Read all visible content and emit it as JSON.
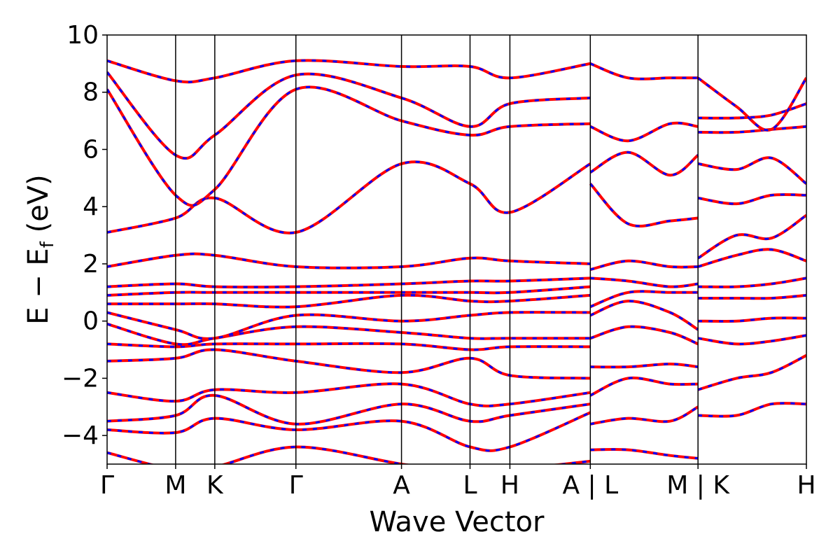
{
  "chart_data": {
    "type": "line",
    "xlabel": "Wave Vector",
    "ylabel_main": "E − E",
    "ylabel_sub": "f",
    "ylabel_unit": " (eV)",
    "ylim": [
      -5,
      10
    ],
    "yticks": [
      -4,
      -2,
      0,
      2,
      4,
      6,
      8,
      10
    ],
    "ytick_labels": [
      "−4",
      "−2",
      "0",
      "2",
      "4",
      "6",
      "8",
      "10"
    ],
    "xlim": [
      0,
      10
    ],
    "kpoints": [
      {
        "x": 0.0,
        "label": "Γ"
      },
      {
        "x": 0.98,
        "label": "M"
      },
      {
        "x": 1.54,
        "label": "K"
      },
      {
        "x": 2.7,
        "label": "Γ"
      },
      {
        "x": 4.21,
        "label": "A"
      },
      {
        "x": 5.19,
        "label": "L"
      },
      {
        "x": 5.76,
        "label": "H"
      },
      {
        "x": 6.91,
        "label": "A | L"
      },
      {
        "x": 8.45,
        "label": "M | K"
      },
      {
        "x": 10.0,
        "label": "H"
      }
    ],
    "segment_breaks": [
      6.91,
      8.45
    ],
    "series_styles": [
      {
        "style": "solid",
        "color": "#ff0000"
      },
      {
        "style": "dashed",
        "color": "#0000ff"
      }
    ],
    "bands": [
      {
        "x": [
          0,
          0.98,
          1.54,
          2.7,
          4.21,
          5.19,
          5.76,
          6.91
        ],
        "y": [
          -4.6,
          -5.2,
          -5.1,
          -4.4,
          -5.0,
          -5.3,
          -5.2,
          -4.9
        ]
      },
      {
        "x": [
          0,
          0.98,
          1.54,
          2.7,
          4.21,
          5.19,
          5.76,
          6.91
        ],
        "y": [
          -3.8,
          -3.9,
          -3.4,
          -3.8,
          -3.5,
          -4.4,
          -4.4,
          -3.2
        ]
      },
      {
        "x": [
          0,
          0.98,
          1.54,
          2.7,
          4.21,
          5.19,
          5.76,
          6.91
        ],
        "y": [
          -3.5,
          -3.3,
          -2.6,
          -3.6,
          -2.9,
          -3.5,
          -3.3,
          -2.9
        ]
      },
      {
        "x": [
          0,
          0.98,
          1.54,
          2.7,
          4.21,
          5.19,
          5.76,
          6.91
        ],
        "y": [
          -2.5,
          -2.8,
          -2.4,
          -2.5,
          -2.2,
          -2.9,
          -2.9,
          -2.5
        ]
      },
      {
        "x": [
          0,
          0.98,
          1.54,
          2.7,
          4.21,
          5.19,
          5.76,
          6.91
        ],
        "y": [
          -1.4,
          -1.3,
          -1.0,
          -1.4,
          -1.8,
          -1.3,
          -1.9,
          -2.0
        ]
      },
      {
        "x": [
          0,
          0.98,
          1.54,
          2.7,
          4.21,
          5.19,
          5.76,
          6.91
        ],
        "y": [
          -0.8,
          -0.9,
          -0.8,
          -0.8,
          -0.8,
          -1.0,
          -0.9,
          -0.9
        ]
      },
      {
        "x": [
          0,
          0.98,
          1.54,
          2.7,
          4.21,
          5.19,
          5.76,
          6.91
        ],
        "y": [
          -0.1,
          -0.8,
          -0.6,
          -0.2,
          -0.4,
          -0.6,
          -0.6,
          -0.6
        ]
      },
      {
        "x": [
          0,
          0.98,
          1.54,
          2.7,
          4.21,
          5.19,
          5.76,
          6.91
        ],
        "y": [
          0.3,
          -0.3,
          -0.6,
          0.2,
          0.0,
          0.2,
          0.3,
          0.3
        ]
      },
      {
        "x": [
          0,
          0.98,
          1.54,
          2.7,
          4.21,
          5.19,
          5.76,
          6.91
        ],
        "y": [
          0.6,
          0.6,
          0.6,
          0.5,
          0.9,
          0.7,
          0.7,
          0.9
        ]
      },
      {
        "x": [
          0,
          0.98,
          1.54,
          2.7,
          4.21,
          5.19,
          5.76,
          6.91
        ],
        "y": [
          0.9,
          1.0,
          1.0,
          1.0,
          1.0,
          1.0,
          1.0,
          1.2
        ]
      },
      {
        "x": [
          0,
          0.98,
          1.54,
          2.7,
          4.21,
          5.19,
          5.76,
          6.91
        ],
        "y": [
          1.2,
          1.3,
          1.2,
          1.2,
          1.3,
          1.4,
          1.4,
          1.5
        ]
      },
      {
        "x": [
          0,
          0.98,
          1.54,
          2.7,
          4.21,
          5.19,
          5.76,
          6.91
        ],
        "y": [
          1.9,
          2.3,
          2.3,
          1.9,
          1.9,
          2.2,
          2.1,
          2.0
        ]
      },
      {
        "x": [
          0,
          0.98,
          1.54,
          2.7,
          4.21,
          5.19,
          5.76,
          6.91
        ],
        "y": [
          3.1,
          3.6,
          4.3,
          3.1,
          5.5,
          4.8,
          3.8,
          5.5
        ]
      },
      {
        "x": [
          0,
          0.98,
          1.54,
          2.7,
          4.21,
          5.19,
          5.76,
          6.91
        ],
        "y": [
          8.1,
          4.4,
          4.6,
          8.1,
          7.0,
          6.5,
          6.8,
          6.9
        ]
      },
      {
        "x": [
          0,
          0.98,
          1.54,
          2.7,
          4.21,
          5.19,
          5.76,
          6.91
        ],
        "y": [
          8.7,
          5.8,
          6.5,
          8.6,
          7.8,
          6.8,
          7.6,
          7.8
        ]
      },
      {
        "x": [
          0,
          0.98,
          1.54,
          2.7,
          4.21,
          5.19,
          5.76,
          6.91
        ],
        "y": [
          9.1,
          8.4,
          8.5,
          9.1,
          8.9,
          8.9,
          8.5,
          9.0
        ]
      },
      {
        "x": [
          6.91,
          7.45,
          8.05,
          8.45
        ],
        "y": [
          -4.5,
          -4.5,
          -4.7,
          -4.8
        ]
      },
      {
        "x": [
          6.91,
          7.45,
          8.05,
          8.45
        ],
        "y": [
          -3.6,
          -3.4,
          -3.5,
          -3.0
        ]
      },
      {
        "x": [
          6.91,
          7.45,
          8.05,
          8.45
        ],
        "y": [
          -2.6,
          -2.0,
          -2.2,
          -2.2
        ]
      },
      {
        "x": [
          6.91,
          7.45,
          8.05,
          8.45
        ],
        "y": [
          -1.6,
          -1.6,
          -1.5,
          -1.6
        ]
      },
      {
        "x": [
          6.91,
          7.45,
          8.05,
          8.45
        ],
        "y": [
          -0.6,
          -0.2,
          -0.4,
          -0.8
        ]
      },
      {
        "x": [
          6.91,
          7.45,
          8.05,
          8.45
        ],
        "y": [
          0.2,
          0.7,
          0.3,
          -0.3
        ]
      },
      {
        "x": [
          6.91,
          7.45,
          8.05,
          8.45
        ],
        "y": [
          0.5,
          1.0,
          1.0,
          1.0
        ]
      },
      {
        "x": [
          6.91,
          7.45,
          8.05,
          8.45
        ],
        "y": [
          1.5,
          1.4,
          1.2,
          1.3
        ]
      },
      {
        "x": [
          6.91,
          7.45,
          8.05,
          8.45
        ],
        "y": [
          1.8,
          2.1,
          1.9,
          1.9
        ]
      },
      {
        "x": [
          6.91,
          7.45,
          8.05,
          8.45
        ],
        "y": [
          4.8,
          3.4,
          3.5,
          3.6
        ]
      },
      {
        "x": [
          6.91,
          7.45,
          8.05,
          8.45
        ],
        "y": [
          5.2,
          5.9,
          5.1,
          5.8
        ]
      },
      {
        "x": [
          6.91,
          7.45,
          8.05,
          8.45
        ],
        "y": [
          6.8,
          6.3,
          6.9,
          6.8
        ]
      },
      {
        "x": [
          6.91,
          7.45,
          8.05,
          8.45
        ],
        "y": [
          9.0,
          8.5,
          8.5,
          8.5
        ]
      },
      {
        "x": [
          8.45,
          9.0,
          9.5,
          10.0
        ],
        "y": [
          -3.3,
          -3.3,
          -2.9,
          -2.9
        ]
      },
      {
        "x": [
          8.45,
          9.0,
          9.5,
          10.0
        ],
        "y": [
          -2.4,
          -2.0,
          -1.8,
          -1.2
        ]
      },
      {
        "x": [
          8.45,
          9.0,
          9.5,
          10.0
        ],
        "y": [
          -0.6,
          -0.8,
          -0.7,
          -0.5
        ]
      },
      {
        "x": [
          8.45,
          9.0,
          9.5,
          10.0
        ],
        "y": [
          0.0,
          0.0,
          0.1,
          0.1
        ]
      },
      {
        "x": [
          8.45,
          9.0,
          9.5,
          10.0
        ],
        "y": [
          0.8,
          0.8,
          0.8,
          0.9
        ]
      },
      {
        "x": [
          8.45,
          9.0,
          9.5,
          10.0
        ],
        "y": [
          1.2,
          1.2,
          1.3,
          1.5
        ]
      },
      {
        "x": [
          8.45,
          9.0,
          9.5,
          10.0
        ],
        "y": [
          1.9,
          2.3,
          2.5,
          2.1
        ]
      },
      {
        "x": [
          8.45,
          9.0,
          9.5,
          10.0
        ],
        "y": [
          2.2,
          3.0,
          2.9,
          3.7
        ]
      },
      {
        "x": [
          8.45,
          9.0,
          9.5,
          10.0
        ],
        "y": [
          4.3,
          4.1,
          4.4,
          4.4
        ]
      },
      {
        "x": [
          8.45,
          9.0,
          9.5,
          10.0
        ],
        "y": [
          5.5,
          5.3,
          5.7,
          4.8
        ]
      },
      {
        "x": [
          8.45,
          9.0,
          9.5,
          10.0
        ],
        "y": [
          6.6,
          6.6,
          6.7,
          6.8
        ]
      },
      {
        "x": [
          8.45,
          9.0,
          9.5,
          10.0
        ],
        "y": [
          7.1,
          7.1,
          7.2,
          7.6
        ]
      },
      {
        "x": [
          8.45,
          9.0,
          9.5,
          10.0
        ],
        "y": [
          8.5,
          7.5,
          6.7,
          8.5
        ]
      }
    ]
  }
}
